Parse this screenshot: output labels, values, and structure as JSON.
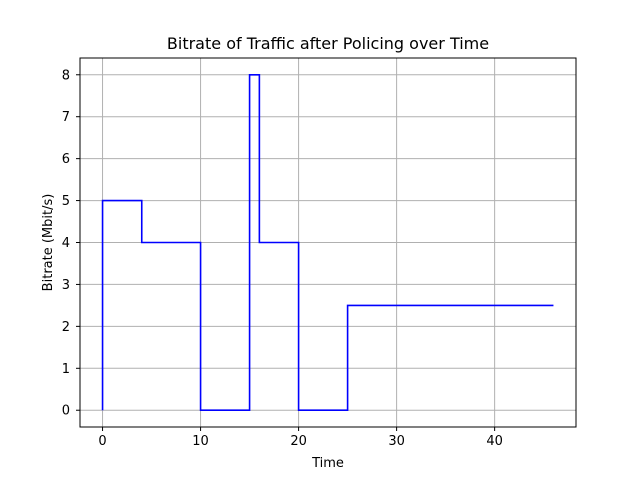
{
  "chart_data": {
    "type": "line",
    "step": "post",
    "title": "Bitrate of Traffic after Policing over Time",
    "xlabel": "Time",
    "ylabel": "Bitrate (Mbit/s)",
    "xlim": [
      -2.3,
      48.3
    ],
    "ylim": [
      -0.4,
      8.4
    ],
    "xticks": [
      0,
      10,
      20,
      30,
      40
    ],
    "yticks": [
      0,
      1,
      2,
      3,
      4,
      5,
      6,
      7,
      8
    ],
    "grid": true,
    "series": [
      {
        "color": "#0000ff",
        "points": [
          [
            0,
            0
          ],
          [
            0,
            5
          ],
          [
            4,
            5
          ],
          [
            4,
            4
          ],
          [
            10,
            4
          ],
          [
            10,
            0
          ],
          [
            15,
            0
          ],
          [
            15,
            8
          ],
          [
            16,
            8
          ],
          [
            16,
            4
          ],
          [
            20,
            4
          ],
          [
            20,
            0
          ],
          [
            25,
            0
          ],
          [
            25,
            2.5
          ],
          [
            46,
            2.5
          ]
        ]
      }
    ]
  }
}
